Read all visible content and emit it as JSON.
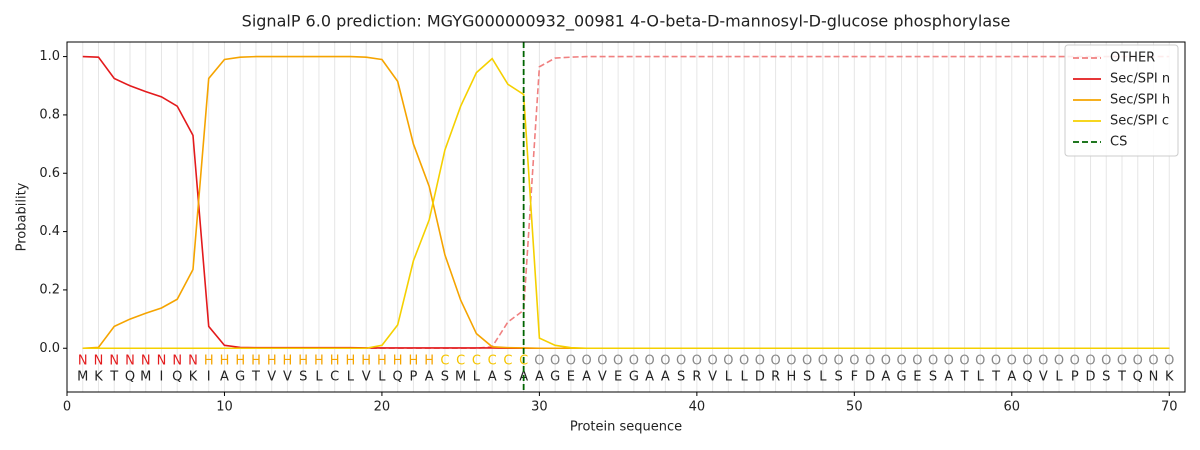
{
  "chart_data": {
    "type": "line",
    "title": "SignalP 6.0 prediction: MGYG000000932_00981 4-O-beta-D-mannosyl-D-glucose phosphorylase",
    "x_label": "Protein sequence",
    "y_label": "Probability",
    "xlim": [
      0,
      71
    ],
    "ylim": [
      -0.15,
      1.05
    ],
    "xticks": [
      0,
      10,
      20,
      30,
      40,
      50,
      60,
      70
    ],
    "yticks": [
      {
        "value": 0,
        "label": "0.0"
      },
      0.2,
      0.4,
      0.6,
      0.8,
      {
        "value": 1,
        "label": "1.0"
      }
    ],
    "grid": "x",
    "legend": "upper right",
    "x": [
      1,
      2,
      3,
      4,
      5,
      6,
      7,
      8,
      9,
      10,
      11,
      12,
      13,
      14,
      15,
      16,
      17,
      18,
      19,
      20,
      21,
      22,
      23,
      24,
      25,
      26,
      27,
      28,
      29,
      30,
      31,
      32,
      33,
      34,
      35,
      36,
      37,
      38,
      39,
      40,
      41,
      42,
      43,
      44,
      45,
      46,
      47,
      48,
      49,
      50,
      51,
      52,
      53,
      54,
      55,
      56,
      57,
      58,
      59,
      60,
      61,
      62,
      63,
      64,
      65,
      66,
      67,
      68,
      69,
      70
    ],
    "residues": [
      "M",
      "K",
      "T",
      "Q",
      "M",
      "I",
      "Q",
      "K",
      "I",
      "A",
      "G",
      "T",
      "V",
      "V",
      "S",
      "L",
      "C",
      "L",
      "V",
      "L",
      "Q",
      "P",
      "A",
      "S",
      "M",
      "L",
      "A",
      "S",
      "A",
      "A",
      "G",
      "E",
      "A",
      "V",
      "E",
      "G",
      "A",
      "A",
      "S",
      "R",
      "V",
      "L",
      "L",
      "D",
      "R",
      "H",
      "S",
      "L",
      "S",
      "F",
      "D",
      "A",
      "G",
      "E",
      "S",
      "A",
      "T",
      "L",
      "T",
      "A",
      "Q",
      "V",
      "L",
      "P",
      "D",
      "S",
      "T",
      "Q",
      "N",
      "K"
    ],
    "labels": [
      "N",
      "N",
      "N",
      "N",
      "N",
      "N",
      "N",
      "N",
      "H",
      "H",
      "H",
      "H",
      "H",
      "H",
      "H",
      "H",
      "H",
      "H",
      "H",
      "H",
      "H",
      "H",
      "H",
      "C",
      "C",
      "C",
      "C",
      "C",
      "C",
      "O",
      "O",
      "O",
      "O",
      "O",
      "O",
      "O",
      "O",
      "O",
      "O",
      "O",
      "O",
      "O",
      "O",
      "O",
      "O",
      "O",
      "O",
      "O",
      "O",
      "O",
      "O",
      "O",
      "O",
      "O",
      "O",
      "O",
      "O",
      "O",
      "O",
      "O",
      "O",
      "O",
      "O",
      "O",
      "O",
      "O",
      "O",
      "O",
      "O",
      "O"
    ],
    "label_colors": {
      "N": "#e31a1c",
      "H": "#f5a400",
      "C": "#f5c400",
      "O": "#888888"
    },
    "series": [
      {
        "name": "OTHER",
        "color": "#f08080",
        "dashed": true,
        "values": [
          0,
          0,
          0,
          0,
          0,
          0,
          0,
          0,
          0,
          0,
          0,
          0,
          0,
          0,
          0,
          0,
          0,
          0,
          0,
          0,
          0,
          0,
          0,
          0,
          0,
          0,
          0.005,
          0.09,
          0.13,
          0.965,
          0.995,
          0.998,
          1,
          1,
          1,
          1,
          1,
          1,
          1,
          1,
          1,
          1,
          1,
          1,
          1,
          1,
          1,
          1,
          1,
          1,
          1,
          1,
          1,
          1,
          1,
          1,
          1,
          1,
          1,
          1,
          1,
          1,
          1,
          1,
          1,
          1,
          1,
          1,
          1,
          1
        ]
      },
      {
        "name": "Sec/SPI n",
        "color": "#e31a1c",
        "values": [
          1.0,
          0.998,
          0.925,
          0.9,
          0.88,
          0.862,
          0.83,
          0.73,
          0.075,
          0.01,
          0.003,
          0.002,
          0.002,
          0.002,
          0.002,
          0.002,
          0.002,
          0.002,
          0.001,
          0.001,
          0.001,
          0.001,
          0.001,
          0.001,
          0.001,
          0.001,
          0.001,
          0,
          0,
          0,
          0,
          0,
          0,
          0,
          0,
          0,
          0,
          0,
          0,
          0,
          0,
          0,
          0,
          0,
          0,
          0,
          0,
          0,
          0,
          0,
          0,
          0,
          0,
          0,
          0,
          0,
          0,
          0,
          0,
          0,
          0,
          0,
          0,
          0,
          0,
          0,
          0,
          0,
          0,
          0
        ]
      },
      {
        "name": "Sec/SPI h",
        "color": "#f5a400",
        "values": [
          0,
          0.003,
          0.075,
          0.1,
          0.12,
          0.138,
          0.168,
          0.27,
          0.925,
          0.99,
          0.998,
          1,
          1,
          1,
          1,
          1,
          1,
          1,
          0.998,
          0.99,
          0.915,
          0.7,
          0.555,
          0.32,
          0.165,
          0.05,
          0.005,
          0.002,
          0.001,
          0,
          0,
          0,
          0,
          0,
          0,
          0,
          0,
          0,
          0,
          0,
          0,
          0,
          0,
          0,
          0,
          0,
          0,
          0,
          0,
          0,
          0,
          0,
          0,
          0,
          0,
          0,
          0,
          0,
          0,
          0,
          0,
          0,
          0,
          0,
          0,
          0,
          0,
          0,
          0,
          0
        ]
      },
      {
        "name": "Sec/SPI c",
        "color": "#f5d000",
        "values": [
          0,
          0,
          0,
          0,
          0,
          0,
          0,
          0,
          0,
          0,
          0,
          0,
          0,
          0,
          0,
          0,
          0,
          0,
          0,
          0.01,
          0.08,
          0.3,
          0.44,
          0.68,
          0.83,
          0.945,
          0.993,
          0.905,
          0.87,
          0.035,
          0.01,
          0.002,
          0,
          0,
          0,
          0,
          0,
          0,
          0,
          0,
          0,
          0,
          0,
          0,
          0,
          0,
          0,
          0,
          0,
          0,
          0,
          0,
          0,
          0,
          0,
          0,
          0,
          0,
          0,
          0,
          0,
          0,
          0,
          0,
          0,
          0,
          0,
          0,
          0,
          0
        ]
      }
    ],
    "cs": {
      "name": "CS",
      "color": "#006400",
      "x": 29
    }
  }
}
